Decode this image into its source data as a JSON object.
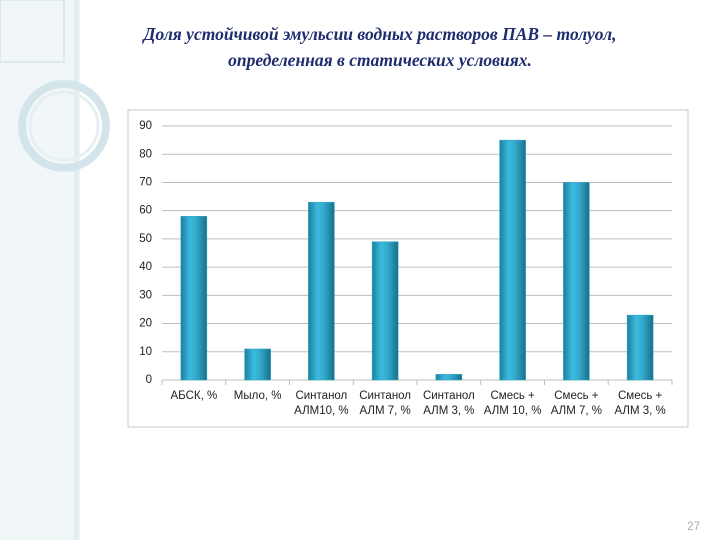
{
  "slide_number": "27",
  "chart_data": {
    "type": "bar",
    "title": [
      "Доля устойчивой  эмульсии  водных растворов ПАВ – толуол,",
      "определенная в статических условиях."
    ],
    "categories": [
      "АБСК, %",
      "Мыло, %",
      "Синтанол АЛМ10, %",
      "Синтанол АЛМ 7, %",
      "Синтанол АЛМ 3, %",
      "Смесь + АЛМ 10, %",
      "Смесь + АЛМ 7, %",
      "Смесь + АЛМ 3, %"
    ],
    "values": [
      58,
      11,
      63,
      49,
      2,
      85,
      70,
      23
    ],
    "color": "#2ea6c6",
    "ylim": [
      0,
      90
    ],
    "yticks": [
      0,
      10,
      20,
      30,
      40,
      50,
      60,
      70,
      80,
      90
    ],
    "grid": true
  }
}
